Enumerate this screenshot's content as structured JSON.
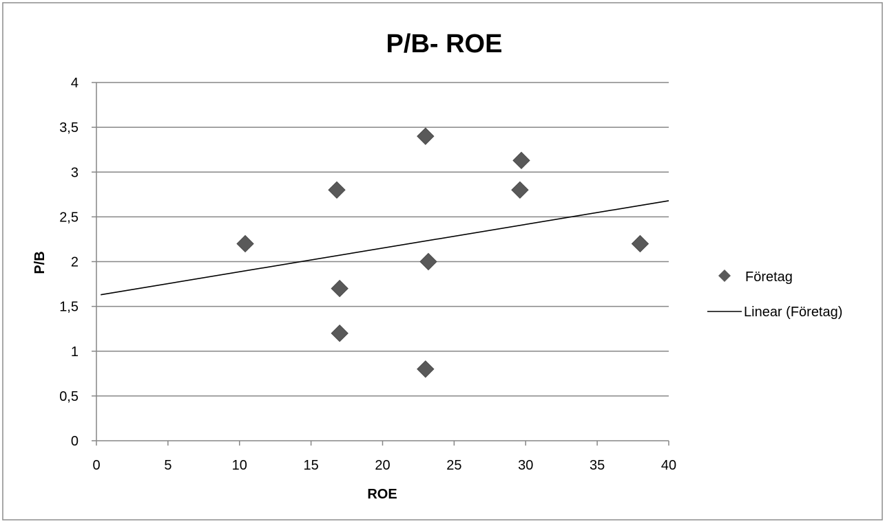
{
  "chart_data": {
    "type": "scatter",
    "title": "P/B- ROE",
    "xlabel": "ROE",
    "ylabel": "P/B",
    "xlim": [
      0,
      40
    ],
    "ylim": [
      0,
      4
    ],
    "x_ticks": [
      "0",
      "5",
      "10",
      "15",
      "20",
      "25",
      "30",
      "35",
      "40"
    ],
    "y_ticks": [
      "0",
      "0,5",
      "1",
      "1,5",
      "2",
      "2,5",
      "3",
      "3,5",
      "4"
    ],
    "grid": "horizontal",
    "legend_position": "right",
    "series": [
      {
        "name": "Företag",
        "marker": "diamond",
        "color": "#595959",
        "points": [
          {
            "x": 10.4,
            "y": 2.2
          },
          {
            "x": 16.8,
            "y": 2.8
          },
          {
            "x": 17.0,
            "y": 1.7
          },
          {
            "x": 17.0,
            "y": 1.2
          },
          {
            "x": 23.0,
            "y": 3.4
          },
          {
            "x": 23.2,
            "y": 2.0
          },
          {
            "x": 23.0,
            "y": 0.8
          },
          {
            "x": 29.7,
            "y": 3.13
          },
          {
            "x": 29.6,
            "y": 2.8
          },
          {
            "x": 38.0,
            "y": 2.2
          }
        ]
      }
    ],
    "trendline": {
      "name": "Linear (Företag)",
      "type": "linear",
      "color": "#000000",
      "from": {
        "x": 0.3,
        "y": 1.63
      },
      "to": {
        "x": 40,
        "y": 2.68
      }
    }
  },
  "colors": {
    "frame": "#8c8c8c",
    "gridline": "#868686",
    "marker": "#595959",
    "trendline": "#000000"
  }
}
